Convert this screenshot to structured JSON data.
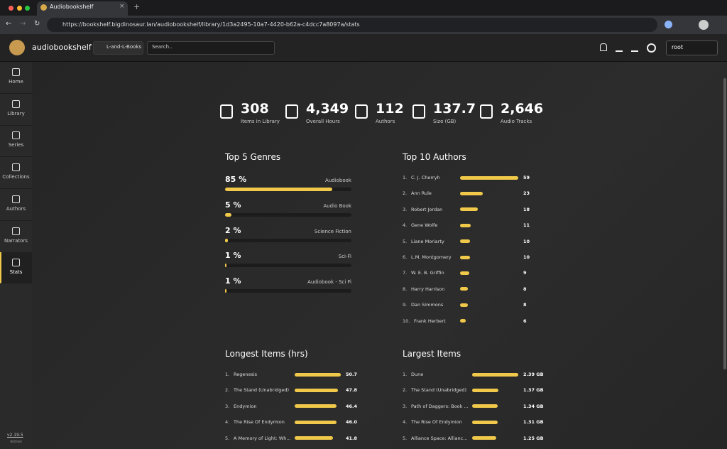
{
  "browser": {
    "tab_title": "Audiobookshelf",
    "url": "https://bookshelf.bigdinosaur.lan/audiobookshelf/library/1d3a2495-10a7-4420-b62a-c4dcc7a8097a/stats"
  },
  "header": {
    "app_name": "audiobookshelf",
    "library": "L-and-L-Books",
    "search_placeholder": "Search..",
    "user": "root"
  },
  "sidebar": {
    "items": [
      "Home",
      "Library",
      "Series",
      "Collections",
      "Authors",
      "Narrators",
      "Stats"
    ],
    "active": "Stats",
    "version": "v2.19.5",
    "platform": "debian"
  },
  "stats": [
    {
      "value": "308",
      "label": "Items in Library"
    },
    {
      "value": "4,349",
      "label": "Overall Hours"
    },
    {
      "value": "112",
      "label": "Authors"
    },
    {
      "value": "137.7",
      "label": "Size (GB)"
    },
    {
      "value": "2,646",
      "label": "Audio Tracks"
    }
  ],
  "genres": {
    "title": "Top 5 Genres",
    "items": [
      {
        "name": "Audiobook",
        "value": 85,
        "value_label": "85 %"
      },
      {
        "name": "Audio Book",
        "value": 5,
        "value_label": "5 %"
      },
      {
        "name": "Science Fiction",
        "value": 2,
        "value_label": "2 %"
      },
      {
        "name": "Sci-Fi",
        "value": 1,
        "value_label": "1 %"
      },
      {
        "name": "Audiobook - Sci Fi",
        "value": 1,
        "value_label": "1 %"
      }
    ]
  },
  "authors": {
    "title": "Top 10 Authors",
    "items": [
      {
        "rank": "1.",
        "name": "C. J. Cherryh",
        "value": 59
      },
      {
        "rank": "2.",
        "name": "Ann Rule",
        "value": 23
      },
      {
        "rank": "3.",
        "name": "Robert Jordan",
        "value": 18
      },
      {
        "rank": "4.",
        "name": "Gene Wolfe",
        "value": 11
      },
      {
        "rank": "5.",
        "name": "Liane Moriarty",
        "value": 10
      },
      {
        "rank": "6.",
        "name": "L.M. Montgomery",
        "value": 10
      },
      {
        "rank": "7.",
        "name": "W. E. B. Griffin",
        "value": 9
      },
      {
        "rank": "8.",
        "name": "Harry Harrison",
        "value": 8
      },
      {
        "rank": "9.",
        "name": "Dan Simmons",
        "value": 8
      },
      {
        "rank": "10.",
        "name": "Frank Herbert",
        "value": 6
      }
    ]
  },
  "longest": {
    "title": "Longest Items (hrs)",
    "items": [
      {
        "rank": "1.",
        "name": "Regenesis",
        "value": 50.7,
        "value_label": "50.7"
      },
      {
        "rank": "2.",
        "name": "The Stand (Unabridged)",
        "value": 47.8,
        "value_label": "47.8"
      },
      {
        "rank": "3.",
        "name": "Endymion",
        "value": 46.4,
        "value_label": "46.4"
      },
      {
        "rank": "4.",
        "name": "The Rise Of Endymion",
        "value": 46.0,
        "value_label": "46.0"
      },
      {
        "rank": "5.",
        "name": "A Memory of Light: Wh...",
        "value": 41.8,
        "value_label": "41.8"
      }
    ]
  },
  "largest": {
    "title": "Largest Items",
    "items": [
      {
        "rank": "1.",
        "name": "Dune",
        "value": 2.39,
        "value_label": "2.39 GB"
      },
      {
        "rank": "2.",
        "name": "The Stand (Unabridged)",
        "value": 1.37,
        "value_label": "1.37 GB"
      },
      {
        "rank": "3.",
        "name": "Path of Daggers: Book ...",
        "value": 1.34,
        "value_label": "1.34 GB"
      },
      {
        "rank": "4.",
        "name": "The Rise Of Endymion",
        "value": 1.31,
        "value_label": "1.31 GB"
      },
      {
        "rank": "5.",
        "name": "Alliance Space: Allianc...",
        "value": 1.25,
        "value_label": "1.25 GB"
      }
    ]
  }
}
